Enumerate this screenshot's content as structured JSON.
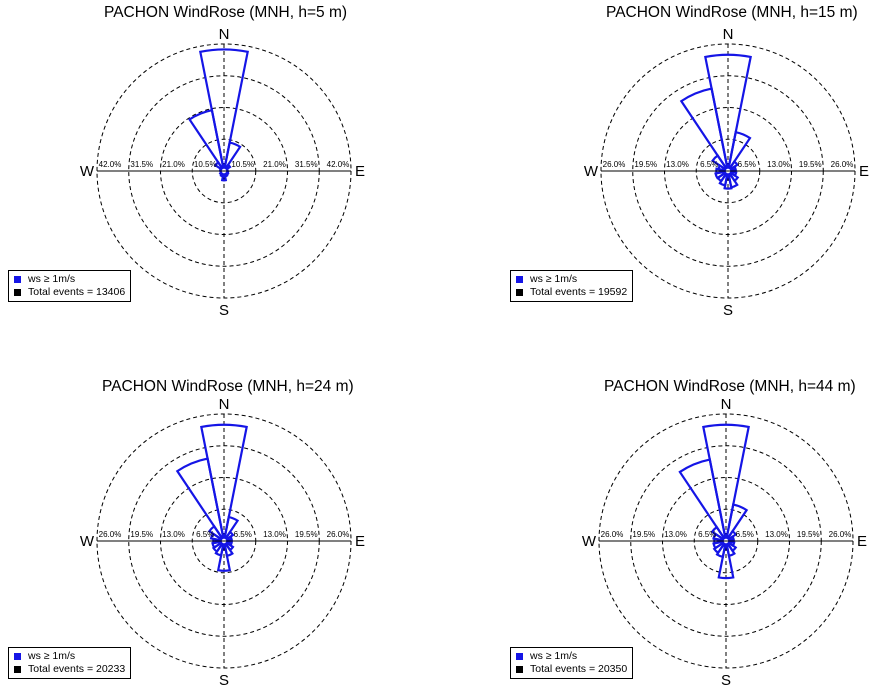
{
  "colors": {
    "petal": "#1515e6",
    "axis": "#000000",
    "ring": "#000000",
    "total_swatch": "#000000"
  },
  "chart_data": [
    {
      "type": "windrose",
      "title": "PACHON WindRose (MNH, h=5 m)",
      "compass": {
        "n": "N",
        "e": "E",
        "s": "S",
        "w": "W"
      },
      "rmax": 42.0,
      "ring_labels": [
        "10.5%",
        "21.0%",
        "31.5%",
        "42.0%"
      ],
      "sector_width_deg": 22.5,
      "directions_deg": [
        0,
        22.5,
        45,
        67.5,
        90,
        112.5,
        135,
        157.5,
        180,
        202.5,
        225,
        247.5,
        270,
        292.5,
        315,
        337.5
      ],
      "frequency_pct": [
        40.2,
        9.6,
        2.4,
        1.2,
        0.8,
        1.4,
        1.6,
        1.8,
        3.1,
        1.8,
        1.5,
        1.2,
        0.8,
        1.3,
        3.4,
        20.5
      ],
      "legend": {
        "series": "ws ≥  1m/s",
        "total": "Total events = 13406"
      }
    },
    {
      "type": "windrose",
      "title": "PACHON WindRose (MNH, h=15 m)",
      "compass": {
        "n": "N",
        "e": "E",
        "s": "S",
        "w": "W"
      },
      "rmax": 26.0,
      "ring_labels": [
        "6.5%",
        "13.0%",
        "19.5%",
        "26.0%"
      ],
      "sector_width_deg": 22.5,
      "directions_deg": [
        0,
        22.5,
        45,
        67.5,
        90,
        112.5,
        135,
        157.5,
        180,
        202.5,
        225,
        247.5,
        270,
        292.5,
        315,
        337.5
      ],
      "frequency_pct": [
        23.8,
        8.1,
        2.3,
        1.6,
        1.4,
        1.7,
        2.4,
        3.4,
        3.6,
        3.0,
        2.5,
        2.6,
        2.4,
        2.0,
        3.8,
        17.2
      ],
      "legend": {
        "series": "ws ≥  1m/s",
        "total": "Total events = 19592"
      }
    },
    {
      "type": "windrose",
      "title": "PACHON WindRose (MNH, h=24 m)",
      "compass": {
        "n": "N",
        "e": "E",
        "s": "S",
        "w": "W"
      },
      "rmax": 26.0,
      "ring_labels": [
        "6.5%",
        "13.0%",
        "19.5%",
        "26.0%"
      ],
      "sector_width_deg": 22.5,
      "directions_deg": [
        0,
        22.5,
        45,
        67.5,
        90,
        112.5,
        135,
        157.5,
        180,
        202.5,
        225,
        247.5,
        270,
        292.5,
        315,
        337.5
      ],
      "frequency_pct": [
        23.8,
        5.0,
        2.2,
        1.6,
        1.4,
        1.6,
        2.2,
        3.1,
        6.1,
        3.0,
        2.6,
        2.4,
        2.2,
        2.7,
        3.6,
        17.2
      ],
      "legend": {
        "series": "ws ≥  1m/s",
        "total": "Total events = 20233"
      }
    },
    {
      "type": "windrose",
      "title": "PACHON WindRose (MNH, h=44 m)",
      "compass": {
        "n": "N",
        "e": "E",
        "s": "S",
        "w": "W"
      },
      "rmax": 26.0,
      "ring_labels": [
        "6.5%",
        "13.0%",
        "19.5%",
        "26.0%"
      ],
      "sector_width_deg": 22.5,
      "directions_deg": [
        0,
        22.5,
        45,
        67.5,
        90,
        112.5,
        135,
        157.5,
        180,
        202.5,
        225,
        247.5,
        270,
        292.5,
        315,
        337.5
      ],
      "frequency_pct": [
        23.8,
        7.6,
        2.4,
        1.6,
        1.4,
        1.7,
        2.4,
        3.1,
        7.6,
        3.3,
        2.9,
        2.6,
        2.4,
        2.6,
        3.4,
        17.0
      ],
      "legend": {
        "series": "ws ≥  1m/s",
        "total": "Total events = 20350"
      }
    }
  ]
}
